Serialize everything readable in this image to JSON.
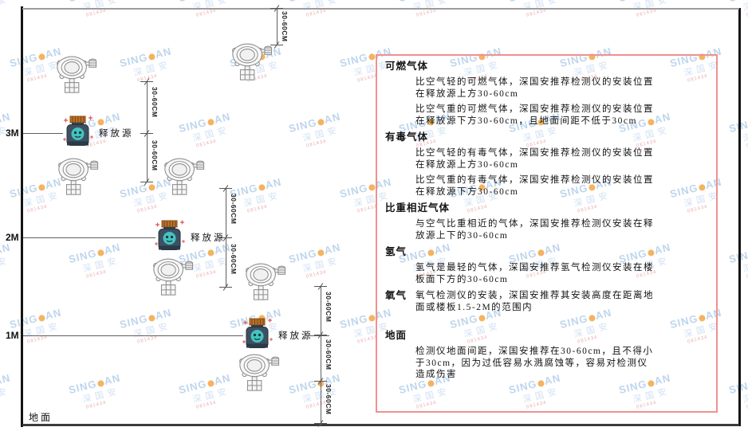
{
  "diagram": {
    "height_labels": [
      "3M",
      "2M",
      "1M"
    ],
    "ground_label": "地面",
    "release_source_label": "释放源",
    "dimension_label": "30-60CM"
  },
  "panel": {
    "sections": [
      {
        "heading": "可燃气体",
        "paragraphs": [
          "比空气轻的可燃气体，深国安推荐检测仪的安装位置在释放源上方30-60cm",
          "比空气重的可燃气体，深国安推荐检测仪的安装位置在释放源下方30-60cm，且地面间距不低于30cm"
        ]
      },
      {
        "heading": "有毒气体",
        "paragraphs": [
          "比空气轻的有毒气体，深国安推荐检测仪的安装位置在释放源上方30-60cm",
          "比空气重的有毒气体，深国安推荐检测仪的安装位置在释放源下方30-60cm"
        ]
      },
      {
        "heading": "比重相近气体",
        "paragraphs": [
          "与空气比重相近的气体，深国安推荐检测仪安装在释放源上下的30-60cm"
        ]
      },
      {
        "heading": "氢气",
        "paragraphs": [
          "氢气是最轻的气体，深国安推荐氢气检测仪安装在楼板面下方的30-60cm"
        ]
      },
      {
        "heading": "氧气",
        "paragraphs": [
          "氧气检测仪的安装，深国安推荐其安装高度在距离地面或楼板1.5-2M的范围内"
        ]
      },
      {
        "heading": "地面",
        "paragraphs": [
          "检测仪地面间距，深国安推荐在30-60cm，且不得小于30cm，因为过低容易水溅腐蚀等，容易对检测仪造成伤害"
        ]
      }
    ]
  },
  "watermark": {
    "brand_left": "SING",
    "brand_right": "AN",
    "chinese": "深国安",
    "red_text": "081434",
    "accent_orange": "#f2a13a",
    "light_blue": "#aecbe8"
  },
  "colors": {
    "panel_border": "#f09090",
    "detector_line": "#8f8f8f",
    "source_body": "#3d5062",
    "source_cap": "#b97127",
    "source_badge": "#43c3bf"
  }
}
